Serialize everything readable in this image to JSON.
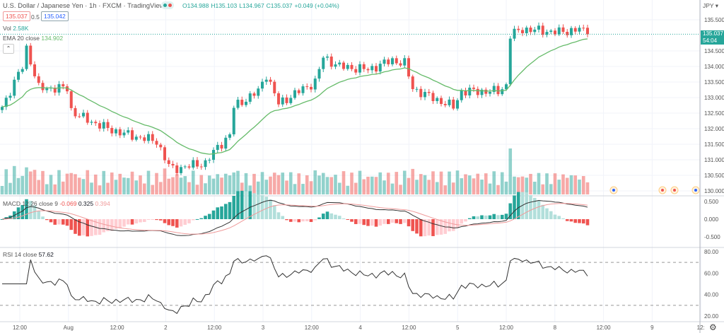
{
  "header": {
    "title": "U.S. Dollar / Japanese Yen · 1h · FXCM · TradingView",
    "ohlc": {
      "o": "O134.988",
      "h": "H135.103",
      "l": "L134.967",
      "c": "C135.037",
      "chg": "+0.049 (+0.04%)"
    },
    "sell_price": "135.037",
    "spread": "0.5",
    "buy_price": "135.042",
    "colors": {
      "up": "#26a69a",
      "down": "#ef5350",
      "ema": "#66bb6a",
      "macd": "#333333",
      "signal": "#ef9a9a"
    }
  },
  "volume": {
    "label": "Vol",
    "value": "2.58K"
  },
  "ema": {
    "label": "EMA 20 close",
    "value": "134.902"
  },
  "macd": {
    "label": "MACD 12 26 close 9",
    "hist": "-0.069",
    "macd": "0.325",
    "signal": "0.394"
  },
  "rsi": {
    "label": "RSI 14 close",
    "value": "57.62"
  },
  "axis": {
    "currency": "JPY ▾",
    "price_ticks": [
      "135.500",
      "134.500",
      "134.000",
      "133.500",
      "133.000",
      "132.500",
      "132.000",
      "131.500",
      "131.000",
      "130.500",
      "130.000"
    ],
    "macd_ticks": [
      "0.500",
      "0.000",
      "-0.500"
    ],
    "rsi_ticks": [
      "80.00",
      "60.00",
      "40.00",
      "20.00"
    ],
    "current_price": "135.037",
    "countdown": "54:04",
    "time_labels": [
      "12:00",
      "Aug",
      "12:00",
      "2",
      "12:00",
      "3",
      "12:00",
      "4",
      "12:00",
      "5",
      "12:00",
      "8",
      "12:00",
      "9",
      "12:"
    ]
  },
  "chart_data": {
    "type": "candlestick",
    "interval": "1h",
    "ylim": [
      130.0,
      135.6
    ],
    "close_keypoints": [
      [
        0,
        132.7
      ],
      [
        5,
        134.0
      ],
      [
        6,
        134.6
      ],
      [
        9,
        133.3
      ],
      [
        16,
        133.3
      ],
      [
        17,
        132.6
      ],
      [
        19,
        132.4
      ],
      [
        26,
        132.0
      ],
      [
        31,
        131.8
      ],
      [
        38,
        131.6
      ],
      [
        41,
        130.8
      ],
      [
        42,
        130.7
      ],
      [
        50,
        130.9
      ],
      [
        53,
        131.4
      ],
      [
        56,
        131.8
      ],
      [
        57,
        132.7
      ],
      [
        63,
        133.2
      ],
      [
        65,
        133.75
      ],
      [
        68,
        132.8
      ],
      [
        73,
        133.2
      ],
      [
        77,
        133.5
      ],
      [
        79,
        134.3
      ],
      [
        83,
        134.0
      ],
      [
        90,
        133.9
      ],
      [
        96,
        134.2
      ],
      [
        99,
        134.1
      ],
      [
        101,
        133.3
      ],
      [
        104,
        133.1
      ],
      [
        111,
        132.7
      ],
      [
        113,
        133.2
      ],
      [
        122,
        133.2
      ],
      [
        124,
        133.4
      ],
      [
        125,
        135.0
      ],
      [
        128,
        135.2
      ],
      [
        137,
        135.1
      ],
      [
        142,
        135.2
      ],
      [
        144,
        135.037
      ]
    ],
    "rsi_levels": [
      70,
      30
    ],
    "macd_ylim": [
      -0.6,
      0.6
    ],
    "rsi_ylim": [
      15,
      85
    ]
  }
}
